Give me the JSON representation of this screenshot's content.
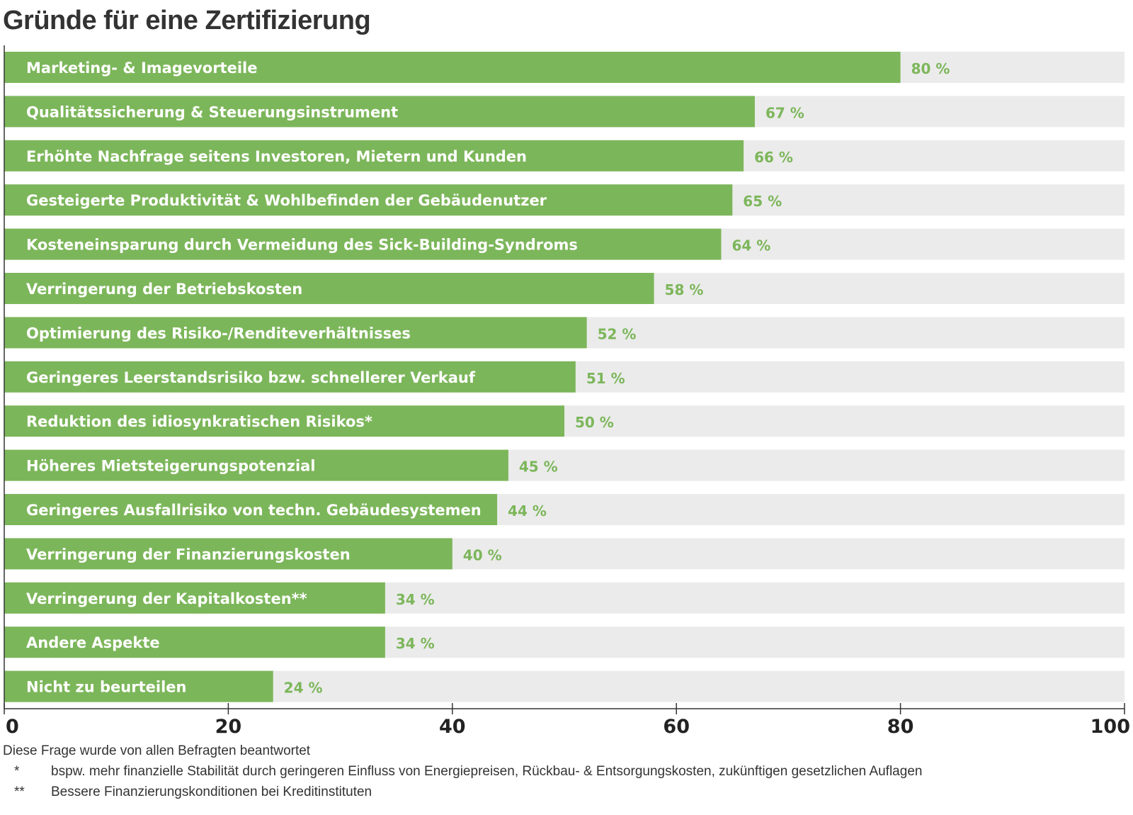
{
  "chart_data": {
    "type": "bar",
    "orientation": "horizontal",
    "title": "Gründe für eine Zertifizierung",
    "categories": [
      "Marketing- & Imagevorteile",
      "Qualitätssicherung & Steuerungsinstrument",
      "Erhöhte Nachfrage seitens Investoren, Mietern und Kunden",
      "Gesteigerte Produktivität & Wohlbefinden der Gebäudenutzer",
      "Kosteneinsparung durch Vermeidung des Sick-Building-Syndroms",
      "Verringerung der Betriebskosten",
      "Optimierung des Risiko-/Renditeverhältnisses",
      "Geringeres Leerstandsrisiko bzw. schnellerer Verkauf",
      "Reduktion des idiosynkratischen Risikos*",
      "Höheres Mietsteigerungspotenzial",
      "Geringeres Ausfallrisiko von techn. Gebäudesystemen",
      "Verringerung der Finanzierungskosten",
      "Verringerung der Kapitalkosten**",
      "Andere Aspekte",
      "Nicht zu beurteilen"
    ],
    "values": [
      80,
      67,
      66,
      65,
      64,
      58,
      52,
      51,
      50,
      45,
      44,
      40,
      34,
      34,
      24
    ],
    "value_labels": [
      "80 %",
      "67 %",
      "66 %",
      "65 %",
      "64 %",
      "58 %",
      "52 %",
      "51 %",
      "50 %",
      "45 %",
      "44 %",
      "40 %",
      "34 %",
      "34 %",
      "24 %"
    ],
    "xlim": [
      0,
      100
    ],
    "xticks": [
      0,
      20,
      40,
      60,
      80,
      100
    ],
    "xtick_labels": [
      "0",
      "20",
      "40",
      "60",
      "80",
      "100"
    ],
    "xlabel": "",
    "ylabel": "",
    "grid": false,
    "colors": {
      "bar": "#7cb65a",
      "track": "#ebebeb",
      "value_text": "#7cb65a",
      "axis": "#333333"
    }
  },
  "notes": {
    "intro": "Diese Frage wurde von allen Befragten beantwortet",
    "footnotes": [
      {
        "mark": "*",
        "text": "bspw. mehr finanzielle Stabilität durch geringeren Einfluss von Energiepreisen, Rückbau- & Entsorgungskosten, zukünftigen gesetzlichen Auflagen"
      },
      {
        "mark": "**",
        "text": "Bessere Finanzierungskonditionen bei Kreditinstituten"
      }
    ]
  }
}
